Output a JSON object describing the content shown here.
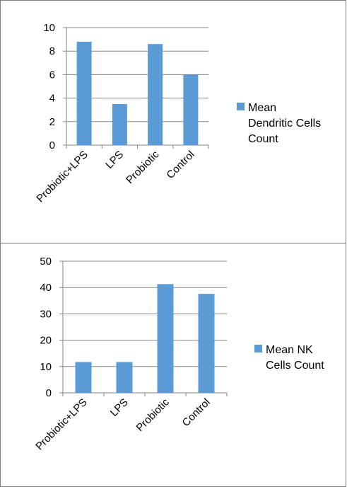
{
  "chart_data": [
    {
      "type": "bar",
      "categories": [
        "Probiotic+LPS",
        "LPS",
        "Probiotic",
        "Control"
      ],
      "series": [
        {
          "name": "Mean Dendritic Cells Count",
          "values": [
            8.8,
            3.5,
            8.6,
            6.0
          ]
        }
      ],
      "legend_lines": [
        "Mean",
        "Dendritic Cells",
        "Count"
      ],
      "yticks": [
        "0",
        "2",
        "4",
        "6",
        "8",
        "10"
      ],
      "ylim": [
        0,
        10
      ],
      "grid": true,
      "legend_position": "right",
      "bar_color": "#5B9BD5"
    },
    {
      "type": "bar",
      "categories": [
        "Probiotic+LPS",
        "LPS",
        "Probiotic",
        "Control"
      ],
      "series": [
        {
          "name": "Mean NK Cells Count",
          "values": [
            11.7,
            11.7,
            41.3,
            37.6
          ]
        }
      ],
      "legend_lines": [
        "Mean NK",
        "Cells Count"
      ],
      "yticks": [
        "0",
        "10",
        "20",
        "30",
        "40",
        "50"
      ],
      "ylim": [
        0,
        50
      ],
      "grid": true,
      "legend_position": "right",
      "bar_color": "#5B9BD5"
    }
  ]
}
